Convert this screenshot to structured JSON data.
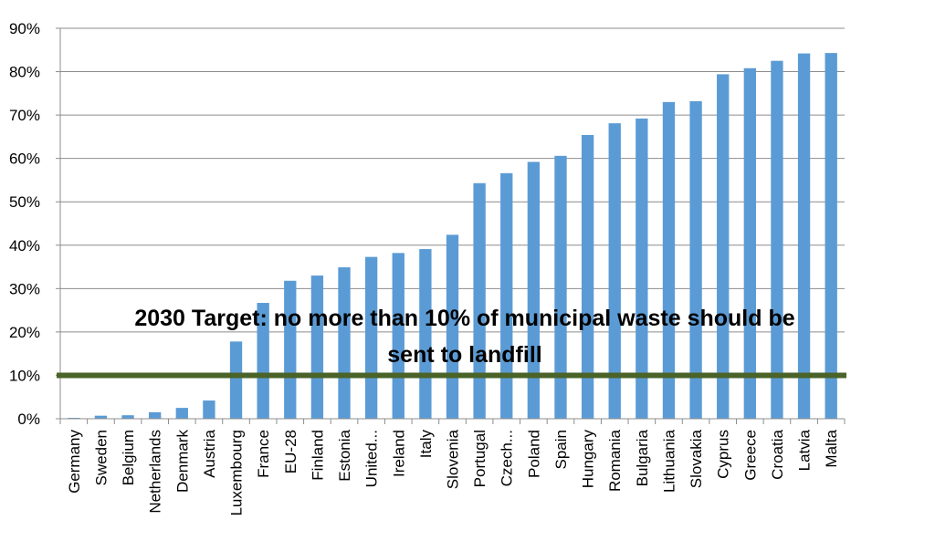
{
  "chart_data": {
    "type": "bar",
    "title": "",
    "xlabel": "",
    "ylabel": "",
    "ylim": [
      0,
      90
    ],
    "yticks": [
      0,
      10,
      20,
      30,
      40,
      50,
      60,
      70,
      80,
      90
    ],
    "ytick_format": "%",
    "grid": true,
    "legend": "none",
    "bar_color": "#5b9bd5",
    "categories": [
      "Germany",
      "Sweden",
      "Belgium",
      "Netherlands",
      "Denmark",
      "Austria",
      "Luxembourg",
      "France",
      "EU-28",
      "Finland",
      "Estonia",
      "United...",
      "Ireland",
      "Italy",
      "Slovenia",
      "Portugal",
      "Czech...",
      "Poland",
      "Spain",
      "Hungary",
      "Romania",
      "Bulgaria",
      "Lithuania",
      "Slovakia",
      "Cyprus",
      "Greece",
      "Croatia",
      "Latvia",
      "Malta"
    ],
    "values": [
      0.2,
      0.7,
      0.8,
      1.5,
      2.5,
      4.2,
      17.8,
      26.7,
      31.8,
      33.0,
      34.9,
      37.3,
      38.2,
      39.1,
      42.4,
      54.3,
      56.6,
      59.2,
      60.6,
      65.4,
      68.1,
      69.2,
      73.0,
      73.2,
      79.4,
      80.8,
      82.5,
      84.2,
      84.3
    ],
    "target_line": {
      "value": 10,
      "color": "#4a6328"
    },
    "annotation": {
      "line1": "2030 Target: no more than 10% of municipal waste should be",
      "line2": "sent to landfill"
    }
  }
}
